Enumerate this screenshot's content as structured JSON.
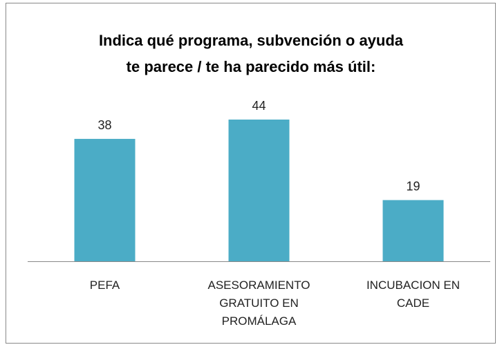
{
  "chart_data": {
    "type": "bar",
    "title": [
      "Indica qué programa, subvención o ayuda",
      "te parece / te ha parecido más útil:"
    ],
    "categories": [
      "PEFA",
      "ASESORAMIENTO GRATUITO EN PROMÁLAGA",
      "INCUBACION EN CADE"
    ],
    "values": [
      38,
      44,
      19
    ],
    "color": "#4bacc6",
    "ylim": [
      0,
      50
    ]
  }
}
